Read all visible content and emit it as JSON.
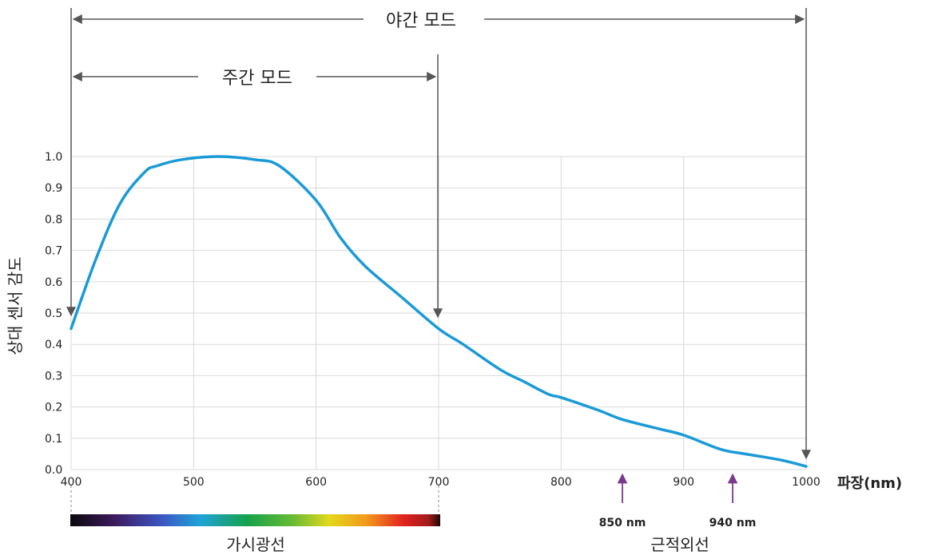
{
  "chart_data": {
    "type": "line",
    "xlabel": "파장(nm)",
    "ylabel": "상대 센서 감도",
    "xlim": [
      400,
      1000
    ],
    "ylim": [
      0,
      1.0
    ],
    "x_ticks": [
      "400",
      "500",
      "600",
      "700",
      "800",
      "900",
      "1000"
    ],
    "y_ticks": [
      "0.0",
      "0.1",
      "0.2",
      "0.3",
      "0.4",
      "0.5",
      "0.6",
      "0.7",
      "0.8",
      "0.9",
      "1.0"
    ],
    "grid": true,
    "series_color": "#1a9ad6",
    "series": [
      {
        "x": [
          400,
          420,
          440,
          460,
          470,
          490,
          520,
          550,
          570,
          600,
          620,
          640,
          670,
          700,
          720,
          750,
          770,
          790,
          800,
          830,
          850,
          880,
          900,
          930,
          950,
          980,
          1000
        ],
        "y": [
          0.45,
          0.67,
          0.85,
          0.95,
          0.97,
          0.99,
          1.0,
          0.99,
          0.97,
          0.86,
          0.74,
          0.65,
          0.55,
          0.45,
          0.4,
          0.32,
          0.28,
          0.24,
          0.23,
          0.19,
          0.16,
          0.13,
          0.11,
          0.065,
          0.05,
          0.03,
          0.01
        ]
      }
    ],
    "annotations": {
      "night_mode": {
        "label": "야간 모드",
        "range": [
          400,
          1000
        ]
      },
      "day_mode": {
        "label": "주간 모드",
        "range": [
          400,
          700
        ]
      },
      "visible_light": {
        "label": "가시광선",
        "range": [
          400,
          700
        ]
      },
      "near_infrared": {
        "label": "근적외선"
      },
      "markers": [
        {
          "x": 850,
          "label": "850 nm"
        },
        {
          "x": 940,
          "label": "940 nm"
        }
      ],
      "arrow_color": "#555555",
      "marker_color": "#7a3a8c"
    }
  }
}
